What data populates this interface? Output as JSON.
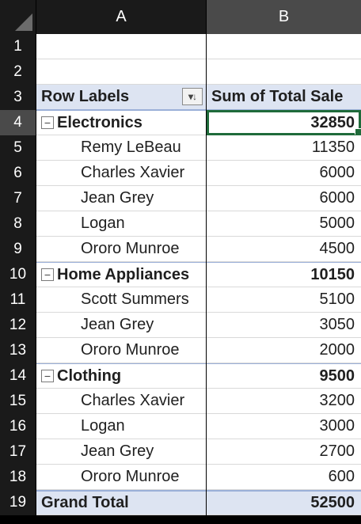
{
  "columns": [
    "A",
    "B"
  ],
  "rows": [
    "1",
    "2",
    "3",
    "4",
    "5",
    "6",
    "7",
    "8",
    "9",
    "10",
    "11",
    "12",
    "13",
    "14",
    "15",
    "16",
    "17",
    "18",
    "19"
  ],
  "pivot": {
    "header": {
      "label": "Row Labels",
      "value_header": "Sum of Total Sale"
    },
    "categories": [
      {
        "label": "Electronics",
        "total": "32850",
        "items": [
          {
            "label": "Remy LeBeau",
            "value": "11350"
          },
          {
            "label": "Charles Xavier",
            "value": "6000"
          },
          {
            "label": "Jean Grey",
            "value": "6000"
          },
          {
            "label": "Logan",
            "value": "5000"
          },
          {
            "label": "Ororo Munroe",
            "value": "4500"
          }
        ]
      },
      {
        "label": "Home Appliances",
        "total": "10150",
        "items": [
          {
            "label": "Scott Summers",
            "value": "5100"
          },
          {
            "label": "Jean Grey",
            "value": "3050"
          },
          {
            "label": "Ororo Munroe",
            "value": "2000"
          }
        ]
      },
      {
        "label": "Clothing",
        "total": "9500",
        "items": [
          {
            "label": "Charles Xavier",
            "value": "3200"
          },
          {
            "label": "Logan",
            "value": "3000"
          },
          {
            "label": "Jean Grey",
            "value": "2700"
          },
          {
            "label": "Ororo Munroe",
            "value": "600"
          }
        ]
      }
    ],
    "grand_total": {
      "label": "Grand Total",
      "value": "52500"
    }
  },
  "icons": {
    "collapse": "minus-box-icon",
    "filter": "sort-filter-icon"
  },
  "colors": {
    "accent": "#1f6b3a",
    "pivot_header_bg": "#dde4f2"
  }
}
